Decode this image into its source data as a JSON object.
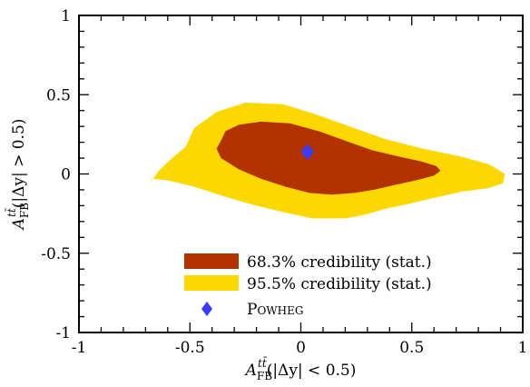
{
  "chart_data": {
    "type": "scatter",
    "xlim": [
      -1,
      1
    ],
    "ylim": [
      -1,
      1
    ],
    "xticks": [
      "-1",
      "-0.5",
      "0",
      "0.5",
      "1"
    ],
    "yticks": [
      "-1",
      "-0.5",
      "0",
      "0.5",
      "1"
    ],
    "xlabel": {
      "main": "A",
      "sup": "tt̄",
      "sub": "FB",
      "rest": "(|Δy| < 0.5)"
    },
    "ylabel": {
      "main": "A",
      "sup": "tt̄",
      "sub": "FB",
      "rest": "(|Δy| > 0.5)"
    },
    "grid": false,
    "legend_position": "bottom-right",
    "regions": [
      {
        "name": "95.5% credibility (stat.)",
        "color": "#fdd800",
        "polygon": [
          [
            -0.52,
            0.17
          ],
          [
            -0.48,
            0.29
          ],
          [
            -0.38,
            0.39
          ],
          [
            -0.25,
            0.45
          ],
          [
            -0.08,
            0.44
          ],
          [
            0.06,
            0.38
          ],
          [
            0.22,
            0.3
          ],
          [
            0.38,
            0.22
          ],
          [
            0.55,
            0.16
          ],
          [
            0.72,
            0.11
          ],
          [
            0.85,
            0.06
          ],
          [
            0.92,
            0.0
          ],
          [
            0.91,
            -0.06
          ],
          [
            0.84,
            -0.09
          ],
          [
            0.73,
            -0.11
          ],
          [
            0.6,
            -0.15
          ],
          [
            0.48,
            -0.19
          ],
          [
            0.38,
            -0.22
          ],
          [
            0.28,
            -0.26
          ],
          [
            0.2,
            -0.28
          ],
          [
            0.05,
            -0.28
          ],
          [
            -0.08,
            -0.24
          ],
          [
            -0.2,
            -0.2
          ],
          [
            -0.35,
            -0.14
          ],
          [
            -0.48,
            -0.08
          ],
          [
            -0.6,
            -0.04
          ],
          [
            -0.67,
            -0.03
          ],
          [
            -0.68,
            -0.06
          ],
          [
            -0.64,
            0.02
          ],
          [
            -0.58,
            0.1
          ]
        ]
      },
      {
        "name": "68.3% credibility (stat.)",
        "color": "#b23200",
        "polygon": [
          [
            -0.36,
            0.21
          ],
          [
            -0.34,
            0.27
          ],
          [
            -0.28,
            0.31
          ],
          [
            -0.18,
            0.33
          ],
          [
            -0.05,
            0.32
          ],
          [
            0.08,
            0.27
          ],
          [
            0.2,
            0.21
          ],
          [
            0.32,
            0.15
          ],
          [
            0.44,
            0.11
          ],
          [
            0.54,
            0.08
          ],
          [
            0.61,
            0.05
          ],
          [
            0.63,
            0.02
          ],
          [
            0.6,
            -0.01
          ],
          [
            0.52,
            -0.04
          ],
          [
            0.42,
            -0.07
          ],
          [
            0.33,
            -0.1
          ],
          [
            0.24,
            -0.12
          ],
          [
            0.14,
            -0.13
          ],
          [
            0.04,
            -0.12
          ],
          [
            -0.07,
            -0.08
          ],
          [
            -0.18,
            -0.03
          ],
          [
            -0.28,
            0.03
          ],
          [
            -0.36,
            0.1
          ],
          [
            -0.38,
            0.16
          ]
        ]
      }
    ],
    "points": [
      {
        "name": "Powheg",
        "x": 0.03,
        "y": 0.14,
        "color": "#3a3afa",
        "marker": "diamond"
      }
    ],
    "legend": [
      {
        "label": "68.3% credibility (stat.)",
        "color": "#b23200",
        "kind": "rect"
      },
      {
        "label": "95.5% credibility (stat.)",
        "color": "#fdd800",
        "kind": "rect"
      },
      {
        "label": "Powheg",
        "color": "#3a3afa",
        "kind": "diamond"
      }
    ]
  }
}
